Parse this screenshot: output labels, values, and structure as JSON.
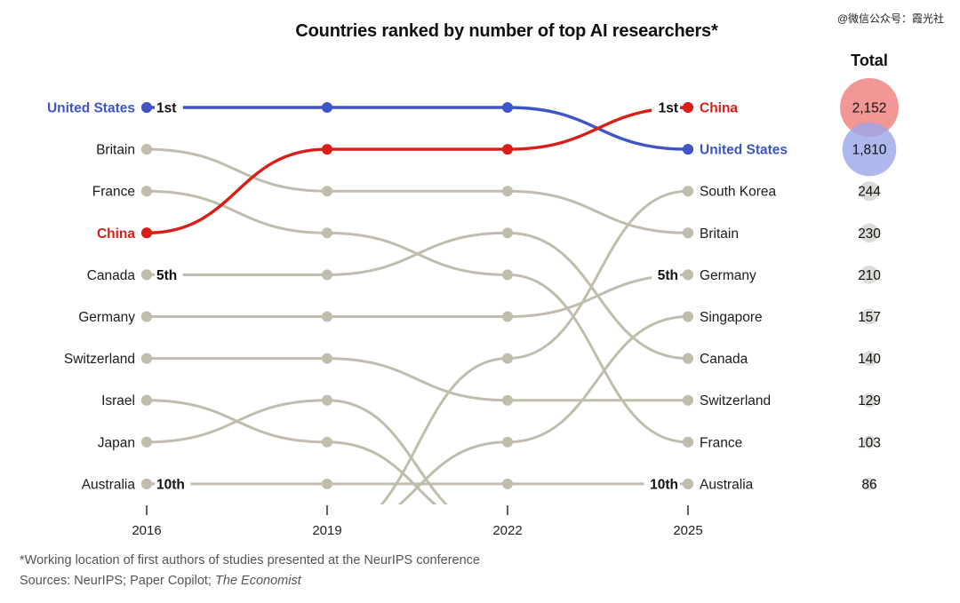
{
  "title": "Countries ranked by number of top AI researchers*",
  "watermark": "@微信公众号：霞光社",
  "total_header": "Total",
  "footnote": "*Working location of first authors of studies presented at the NeurIPS conference",
  "sources_prefix": "Sources: NeurIPS; Paper Copilot; ",
  "sources_italic": "The Economist",
  "colors": {
    "United States": "#3d55c6",
    "China": "#d91e18",
    "other": "#c1bcac",
    "us_bubble": "#9aa6e8",
    "china_bubble": "#f08583",
    "small_bubble": "#dddbd6"
  },
  "chart_data": {
    "type": "bump",
    "years": [
      "2016",
      "2019",
      "2022",
      "2025"
    ],
    "rank_markers": [
      {
        "year": "2016",
        "rank": 1,
        "label": "1st"
      },
      {
        "year": "2016",
        "rank": 5,
        "label": "5th"
      },
      {
        "year": "2016",
        "rank": 10,
        "label": "10th"
      },
      {
        "year": "2025",
        "rank": 1,
        "label": "1st"
      },
      {
        "year": "2025",
        "rank": 5,
        "label": "5th"
      },
      {
        "year": "2025",
        "rank": 10,
        "label": "10th"
      }
    ],
    "series": [
      {
        "name": "United States",
        "ranks": [
          1,
          1,
          1,
          2
        ],
        "highlight": true
      },
      {
        "name": "China",
        "ranks": [
          4,
          2,
          2,
          1
        ],
        "highlight": true
      },
      {
        "name": "Britain",
        "ranks": [
          2,
          3,
          3,
          4
        ]
      },
      {
        "name": "France",
        "ranks": [
          3,
          4,
          5,
          9
        ]
      },
      {
        "name": "Canada",
        "ranks": [
          5,
          5,
          4,
          7
        ]
      },
      {
        "name": "Germany",
        "ranks": [
          6,
          6,
          6,
          5
        ]
      },
      {
        "name": "Switzerland",
        "ranks": [
          7,
          7,
          8,
          8
        ]
      },
      {
        "name": "Israel",
        "ranks": [
          8,
          9,
          11,
          null
        ]
      },
      {
        "name": "Japan",
        "ranks": [
          9,
          8,
          11,
          null
        ]
      },
      {
        "name": "Australia",
        "ranks": [
          10,
          10,
          10,
          10
        ]
      },
      {
        "name": "South Korea",
        "ranks": [
          null,
          11,
          7,
          3
        ]
      },
      {
        "name": "Singapore",
        "ranks": [
          null,
          11,
          9,
          6
        ]
      }
    ],
    "totals": [
      {
        "country": "China",
        "value": 2152,
        "label": "2,152"
      },
      {
        "country": "United States",
        "value": 1810,
        "label": "1,810"
      },
      {
        "country": "South Korea",
        "value": 244,
        "label": "244"
      },
      {
        "country": "Britain",
        "value": 230,
        "label": "230"
      },
      {
        "country": "Germany",
        "value": 210,
        "label": "210"
      },
      {
        "country": "Singapore",
        "value": 157,
        "label": "157"
      },
      {
        "country": "Canada",
        "value": 140,
        "label": "140"
      },
      {
        "country": "Switzerland",
        "value": 129,
        "label": "129"
      },
      {
        "country": "France",
        "value": 103,
        "label": "103"
      },
      {
        "country": "Australia",
        "value": 86,
        "label": "86"
      }
    ]
  }
}
